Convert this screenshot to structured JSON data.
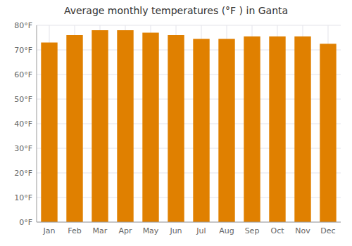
{
  "chart_data": {
    "type": "bar",
    "title": "Average monthly temperatures (°F ) in Ganta",
    "categories": [
      "Jan",
      "Feb",
      "Mar",
      "Apr",
      "May",
      "Jun",
      "Jul",
      "Aug",
      "Sep",
      "Oct",
      "Nov",
      "Dec"
    ],
    "values": [
      73,
      76,
      78,
      78,
      77,
      76,
      74.5,
      74.5,
      75.5,
      75.5,
      75.5,
      72.5
    ],
    "color": "#E08000",
    "ylim": [
      0,
      80
    ],
    "yticks": [
      {
        "value": 0,
        "label": "0°F"
      },
      {
        "value": 10,
        "label": "10°F"
      },
      {
        "value": 20,
        "label": "20°F"
      },
      {
        "value": 30,
        "label": "30°F"
      },
      {
        "value": 40,
        "label": "40°F"
      },
      {
        "value": 50,
        "label": "50°F"
      },
      {
        "value": 60,
        "label": "60°F"
      },
      {
        "value": 70,
        "label": "70°F"
      },
      {
        "value": 80,
        "label": "80°F"
      }
    ],
    "grid": true
  }
}
